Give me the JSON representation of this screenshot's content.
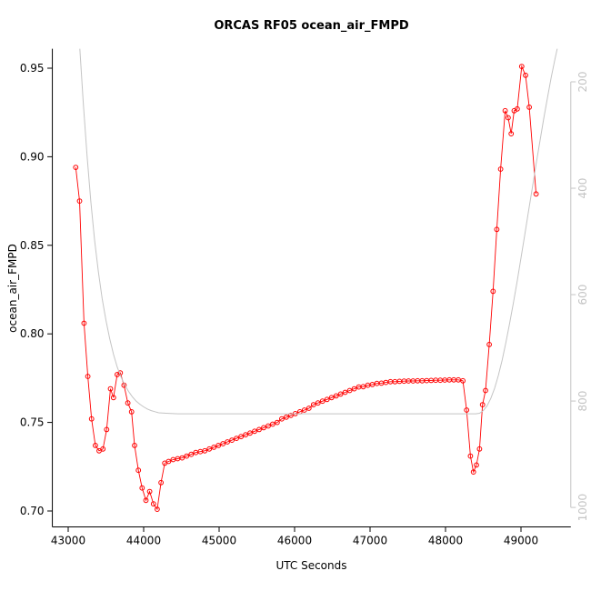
{
  "chart_data": {
    "type": "line",
    "title": "ORCAS RF05 ocean_air_FMPD",
    "xlabel": "UTC Seconds",
    "ylabel": "ocean_air_FMPD",
    "grid": false,
    "legend": "none",
    "x_ticks": [
      43000,
      44000,
      45000,
      46000,
      47000,
      48000,
      49000
    ],
    "y_ticks_left": [
      "0.70",
      "0.75",
      "0.80",
      "0.85",
      "0.90",
      "0.95"
    ],
    "y_ticks_right": [
      "200",
      "400",
      "600",
      "800",
      "1000"
    ],
    "xlim": [
      42790,
      49660
    ],
    "ylim_left": [
      0.691,
      0.961
    ],
    "right_axis_alignment": {
      "p200_left": 0.9423,
      "p1000_left": 0.702
    },
    "colors": {
      "primary_series": "#ff0000",
      "secondary": "#c4c4c4",
      "axis": "#000000",
      "right_labels": "#c4c4c4"
    },
    "series": [
      {
        "name": "ocean_air_FMPD",
        "axis": "left",
        "color": "#ff0000",
        "marker": "open-circle",
        "points": [
          [
            43100,
            0.894
          ],
          [
            43150,
            0.875
          ],
          [
            43210,
            0.806
          ],
          [
            43260,
            0.776
          ],
          [
            43310,
            0.752
          ],
          [
            43360,
            0.737
          ],
          [
            43410,
            0.734
          ],
          [
            43460,
            0.735
          ],
          [
            43510,
            0.746
          ],
          [
            43560,
            0.769
          ],
          [
            43600,
            0.764
          ],
          [
            43650,
            0.777
          ],
          [
            43690,
            0.778
          ],
          [
            43740,
            0.771
          ],
          [
            43790,
            0.761
          ],
          [
            43840,
            0.756
          ],
          [
            43880,
            0.737
          ],
          [
            43930,
            0.723
          ],
          [
            43980,
            0.713
          ],
          [
            44030,
            0.706
          ],
          [
            44080,
            0.711
          ],
          [
            44130,
            0.704
          ],
          [
            44180,
            0.701
          ],
          [
            44230,
            0.716
          ],
          [
            44280,
            0.727
          ],
          [
            44330,
            0.728
          ],
          [
            44390,
            0.729
          ],
          [
            44450,
            0.7295
          ],
          [
            44510,
            0.73
          ],
          [
            44570,
            0.731
          ],
          [
            44630,
            0.732
          ],
          [
            44690,
            0.733
          ],
          [
            44750,
            0.7335
          ],
          [
            44810,
            0.734
          ],
          [
            44870,
            0.735
          ],
          [
            44930,
            0.736
          ],
          [
            44990,
            0.737
          ],
          [
            45050,
            0.738
          ],
          [
            45110,
            0.739
          ],
          [
            45170,
            0.74
          ],
          [
            45230,
            0.741
          ],
          [
            45290,
            0.742
          ],
          [
            45350,
            0.743
          ],
          [
            45410,
            0.744
          ],
          [
            45470,
            0.745
          ],
          [
            45530,
            0.746
          ],
          [
            45590,
            0.747
          ],
          [
            45650,
            0.748
          ],
          [
            45710,
            0.749
          ],
          [
            45770,
            0.75
          ],
          [
            45830,
            0.752
          ],
          [
            45890,
            0.753
          ],
          [
            45950,
            0.754
          ],
          [
            46010,
            0.755
          ],
          [
            46070,
            0.756
          ],
          [
            46130,
            0.757
          ],
          [
            46190,
            0.758
          ],
          [
            46250,
            0.76
          ],
          [
            46310,
            0.761
          ],
          [
            46370,
            0.762
          ],
          [
            46430,
            0.763
          ],
          [
            46490,
            0.764
          ],
          [
            46550,
            0.765
          ],
          [
            46610,
            0.766
          ],
          [
            46670,
            0.767
          ],
          [
            46730,
            0.768
          ],
          [
            46790,
            0.769
          ],
          [
            46850,
            0.77
          ],
          [
            46910,
            0.7702
          ],
          [
            46970,
            0.771
          ],
          [
            47030,
            0.7714
          ],
          [
            47090,
            0.772
          ],
          [
            47150,
            0.7722
          ],
          [
            47210,
            0.7726
          ],
          [
            47270,
            0.773
          ],
          [
            47330,
            0.773
          ],
          [
            47390,
            0.7732
          ],
          [
            47450,
            0.7733
          ],
          [
            47510,
            0.7734
          ],
          [
            47570,
            0.7734
          ],
          [
            47630,
            0.7735
          ],
          [
            47690,
            0.7735
          ],
          [
            47750,
            0.7736
          ],
          [
            47810,
            0.7737
          ],
          [
            47870,
            0.7738
          ],
          [
            47930,
            0.7738
          ],
          [
            47990,
            0.7739
          ],
          [
            48050,
            0.774
          ],
          [
            48110,
            0.774
          ],
          [
            48170,
            0.774
          ],
          [
            48230,
            0.7735
          ],
          [
            48280,
            0.757
          ],
          [
            48330,
            0.731
          ],
          [
            48370,
            0.722
          ],
          [
            48410,
            0.726
          ],
          [
            48450,
            0.735
          ],
          [
            48490,
            0.76
          ],
          [
            48530,
            0.768
          ],
          [
            48580,
            0.794
          ],
          [
            48630,
            0.824
          ],
          [
            48680,
            0.859
          ],
          [
            48730,
            0.893
          ],
          [
            48790,
            0.926
          ],
          [
            48830,
            0.922
          ],
          [
            48870,
            0.913
          ],
          [
            48910,
            0.926
          ],
          [
            48950,
            0.927
          ],
          [
            49010,
            0.951
          ],
          [
            49060,
            0.946
          ],
          [
            49110,
            0.928
          ],
          [
            49200,
            0.879
          ]
        ]
      },
      {
        "name": "gray-reference-trace",
        "axis": "right",
        "color": "#c4c4c4",
        "marker": "none",
        "points": [
          [
            43100,
            50
          ],
          [
            43150,
            130
          ],
          [
            43200,
            240
          ],
          [
            43250,
            340
          ],
          [
            43300,
            425
          ],
          [
            43350,
            497
          ],
          [
            43400,
            557
          ],
          [
            43450,
            607
          ],
          [
            43500,
            648
          ],
          [
            43550,
            683
          ],
          [
            43600,
            712
          ],
          [
            43650,
            736
          ],
          [
            43700,
            755
          ],
          [
            43750,
            770
          ],
          [
            43800,
            782
          ],
          [
            43850,
            792
          ],
          [
            43900,
            800
          ],
          [
            43950,
            806
          ],
          [
            44000,
            811
          ],
          [
            44050,
            815
          ],
          [
            44100,
            818
          ],
          [
            44150,
            820
          ],
          [
            44200,
            822
          ],
          [
            44300,
            823
          ],
          [
            44450,
            824
          ],
          [
            48400,
            824
          ],
          [
            48450,
            823
          ],
          [
            48500,
            818
          ],
          [
            48550,
            809
          ],
          [
            48600,
            795
          ],
          [
            48650,
            776
          ],
          [
            48700,
            752
          ],
          [
            48750,
            723
          ],
          [
            48800,
            690
          ],
          [
            48850,
            654
          ],
          [
            48900,
            615
          ],
          [
            48950,
            574
          ],
          [
            49000,
            531
          ],
          [
            49050,
            487
          ],
          [
            49100,
            443
          ],
          [
            49150,
            399
          ],
          [
            49200,
            355
          ],
          [
            49250,
            312
          ],
          [
            49300,
            270
          ],
          [
            49350,
            230
          ],
          [
            49400,
            192
          ],
          [
            49450,
            157
          ],
          [
            49500,
            125
          ],
          [
            49550,
            96
          ],
          [
            49620,
            60
          ]
        ]
      }
    ]
  }
}
